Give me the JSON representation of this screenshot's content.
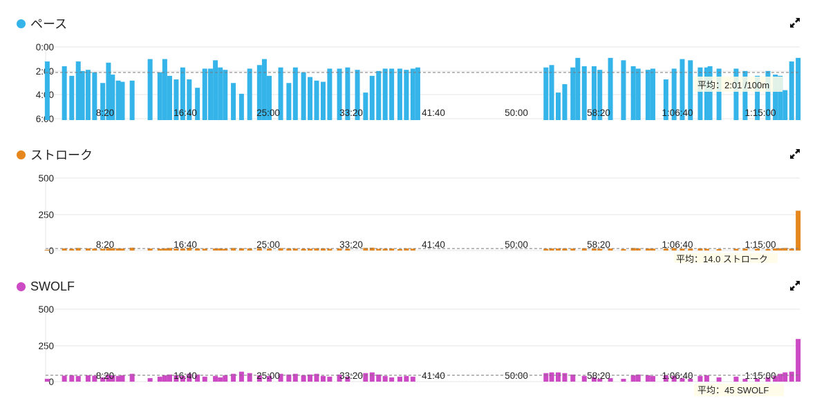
{
  "chart_data": [
    {
      "type": "bar",
      "title": "ペース",
      "color": "#35b4ea",
      "y_tick_labels": [
        "0:00",
        "2:00",
        "4:00",
        "6:00"
      ],
      "ylim": [
        0,
        6
      ],
      "reversed_y": true,
      "x_tick_labels": [
        "8:20",
        "16:40",
        "25:00",
        "33:20",
        "41:40",
        "50:00",
        "58:20",
        "1:06:40",
        "1:15:00"
      ],
      "xlim": [
        0,
        4620
      ],
      "average": {
        "value": 2.02,
        "label": "平均：2:01 /100m"
      },
      "bars": [
        [
          10,
          1.1
        ],
        [
          115,
          1.5
        ],
        [
          160,
          2.3
        ],
        [
          200,
          1.1
        ],
        [
          225,
          1.9
        ],
        [
          260,
          1.8
        ],
        [
          300,
          2.0
        ],
        [
          350,
          2.9
        ],
        [
          385,
          1.2
        ],
        [
          410,
          2.2
        ],
        [
          445,
          2.7
        ],
        [
          470,
          2.8
        ],
        [
          530,
          2.7
        ],
        [
          640,
          0.9
        ],
        [
          700,
          2.0
        ],
        [
          730,
          0.9
        ],
        [
          760,
          2.3
        ],
        [
          800,
          2.6
        ],
        [
          840,
          1.6
        ],
        [
          880,
          2.6
        ],
        [
          930,
          3.3
        ],
        [
          975,
          1.7
        ],
        [
          1010,
          1.7
        ],
        [
          1040,
          1.0
        ],
        [
          1070,
          1.6
        ],
        [
          1100,
          1.8
        ],
        [
          1150,
          2.9
        ],
        [
          1200,
          3.8
        ],
        [
          1250,
          1.7
        ],
        [
          1310,
          1.4
        ],
        [
          1340,
          0.9
        ],
        [
          1370,
          2.3
        ],
        [
          1440,
          1.6
        ],
        [
          1490,
          2.9
        ],
        [
          1530,
          1.6
        ],
        [
          1580,
          2.0
        ],
        [
          1620,
          2.4
        ],
        [
          1660,
          2.7
        ],
        [
          1700,
          2.8
        ],
        [
          1740,
          1.7
        ],
        [
          1800,
          1.7
        ],
        [
          1850,
          1.6
        ],
        [
          1910,
          1.8
        ],
        [
          1960,
          3.7
        ],
        [
          2000,
          2.3
        ],
        [
          2040,
          1.9
        ],
        [
          2080,
          1.7
        ],
        [
          2120,
          1.7
        ],
        [
          2170,
          1.7
        ],
        [
          2210,
          1.8
        ],
        [
          2250,
          1.7
        ],
        [
          2280,
          1.6
        ],
        [
          3065,
          1.6
        ],
        [
          3100,
          1.4
        ],
        [
          3140,
          3.7
        ],
        [
          3180,
          3.0
        ],
        [
          3230,
          1.6
        ],
        [
          3260,
          0.8
        ],
        [
          3300,
          1.5
        ],
        [
          3360,
          1.5
        ],
        [
          3395,
          1.8
        ],
        [
          3460,
          0.8
        ],
        [
          3540,
          1.0
        ],
        [
          3600,
          1.5
        ],
        [
          3630,
          1.7
        ],
        [
          3690,
          1.8
        ],
        [
          3720,
          1.7
        ],
        [
          3800,
          2.6
        ],
        [
          3850,
          1.7
        ],
        [
          3900,
          0.9
        ],
        [
          3950,
          1.0
        ],
        [
          4010,
          1.6
        ],
        [
          4050,
          1.6
        ],
        [
          4070,
          1.5
        ],
        [
          4125,
          1.7
        ],
        [
          4230,
          1.7
        ],
        [
          4285,
          1.9
        ],
        [
          4360,
          2.3
        ],
        [
          4425,
          1.9
        ],
        [
          4470,
          2.2
        ],
        [
          4500,
          2.3
        ],
        [
          4530,
          3.5
        ],
        [
          4570,
          1.1
        ],
        [
          4610,
          0.8
        ]
      ]
    },
    {
      "type": "bar",
      "title": "ストローク",
      "color": "#e5871d",
      "y_tick_labels": [
        "500",
        "250",
        "0"
      ],
      "ylim": [
        0,
        500
      ],
      "x_tick_labels": [
        "8:20",
        "16:40",
        "25:00",
        "33:20",
        "41:40",
        "50:00",
        "58:20",
        "1:06:40",
        "1:15:00"
      ],
      "xlim": [
        0,
        4620
      ],
      "average": {
        "value": 14,
        "label": "平均：14.0 ストローク"
      },
      "bars": [
        [
          10,
          5
        ],
        [
          115,
          15
        ],
        [
          160,
          12
        ],
        [
          200,
          18
        ],
        [
          260,
          15
        ],
        [
          300,
          14
        ],
        [
          350,
          12
        ],
        [
          385,
          18
        ],
        [
          410,
          17
        ],
        [
          445,
          15
        ],
        [
          470,
          14
        ],
        [
          530,
          20
        ],
        [
          640,
          14
        ],
        [
          700,
          12
        ],
        [
          730,
          15
        ],
        [
          760,
          18
        ],
        [
          800,
          14
        ],
        [
          840,
          15
        ],
        [
          880,
          20
        ],
        [
          930,
          15
        ],
        [
          975,
          13
        ],
        [
          1040,
          14
        ],
        [
          1070,
          15
        ],
        [
          1100,
          12
        ],
        [
          1150,
          18
        ],
        [
          1200,
          16
        ],
        [
          1250,
          15
        ],
        [
          1310,
          18
        ],
        [
          1370,
          14
        ],
        [
          1440,
          17
        ],
        [
          1490,
          15
        ],
        [
          1530,
          14
        ],
        [
          1580,
          12
        ],
        [
          1620,
          13
        ],
        [
          1660,
          16
        ],
        [
          1700,
          15
        ],
        [
          1740,
          12
        ],
        [
          1800,
          14
        ],
        [
          1850,
          13
        ],
        [
          1960,
          18
        ],
        [
          2000,
          20
        ],
        [
          2040,
          12
        ],
        [
          2080,
          13
        ],
        [
          2120,
          14
        ],
        [
          2170,
          10
        ],
        [
          2210,
          15
        ],
        [
          2250,
          13
        ],
        [
          3065,
          12
        ],
        [
          3100,
          15
        ],
        [
          3140,
          14
        ],
        [
          3180,
          15
        ],
        [
          3230,
          14
        ],
        [
          3300,
          16
        ],
        [
          3360,
          15
        ],
        [
          3395,
          12
        ],
        [
          3460,
          14
        ],
        [
          3540,
          10
        ],
        [
          3600,
          18
        ],
        [
          3630,
          15
        ],
        [
          3690,
          14
        ],
        [
          3720,
          13
        ],
        [
          3800,
          14
        ],
        [
          3850,
          18
        ],
        [
          3900,
          13
        ],
        [
          3950,
          14
        ],
        [
          4010,
          15
        ],
        [
          4050,
          12
        ],
        [
          4125,
          10
        ],
        [
          4230,
          12
        ],
        [
          4285,
          14
        ],
        [
          4360,
          13
        ],
        [
          4425,
          10
        ],
        [
          4470,
          15
        ],
        [
          4500,
          16
        ],
        [
          4530,
          18
        ],
        [
          4570,
          14
        ],
        [
          4610,
          280
        ]
      ]
    },
    {
      "type": "bar",
      "title": "SWOLF",
      "color": "#cc4ac3",
      "y_tick_labels": [
        "500",
        "250",
        "0"
      ],
      "ylim": [
        0,
        500
      ],
      "x_tick_labels": [
        "8:20",
        "16:40",
        "25:00",
        "33:20",
        "41:40",
        "50:00",
        "58:20",
        "1:06:40",
        "1:15:00"
      ],
      "xlim": [
        0,
        4620
      ],
      "average": {
        "value": 45,
        "label": "平均：45 SWOLF"
      },
      "bars": [
        [
          10,
          20
        ],
        [
          115,
          42
        ],
        [
          160,
          45
        ],
        [
          200,
          40
        ],
        [
          260,
          45
        ],
        [
          300,
          42
        ],
        [
          350,
          30
        ],
        [
          385,
          50
        ],
        [
          410,
          45
        ],
        [
          445,
          40
        ],
        [
          470,
          45
        ],
        [
          530,
          55
        ],
        [
          640,
          25
        ],
        [
          700,
          35
        ],
        [
          730,
          45
        ],
        [
          760,
          50
        ],
        [
          800,
          45
        ],
        [
          840,
          40
        ],
        [
          880,
          55
        ],
        [
          930,
          50
        ],
        [
          975,
          35
        ],
        [
          1040,
          40
        ],
        [
          1070,
          30
        ],
        [
          1100,
          45
        ],
        [
          1150,
          55
        ],
        [
          1200,
          70
        ],
        [
          1250,
          60
        ],
        [
          1310,
          45
        ],
        [
          1370,
          40
        ],
        [
          1440,
          55
        ],
        [
          1490,
          50
        ],
        [
          1530,
          55
        ],
        [
          1580,
          45
        ],
        [
          1620,
          50
        ],
        [
          1660,
          55
        ],
        [
          1700,
          40
        ],
        [
          1740,
          35
        ],
        [
          1800,
          50
        ],
        [
          1850,
          35
        ],
        [
          1960,
          60
        ],
        [
          2000,
          65
        ],
        [
          2040,
          50
        ],
        [
          2080,
          40
        ],
        [
          2120,
          30
        ],
        [
          2170,
          35
        ],
        [
          2210,
          40
        ],
        [
          2250,
          35
        ],
        [
          3065,
          60
        ],
        [
          3100,
          65
        ],
        [
          3140,
          65
        ],
        [
          3180,
          60
        ],
        [
          3230,
          50
        ],
        [
          3300,
          40
        ],
        [
          3360,
          30
        ],
        [
          3395,
          20
        ],
        [
          3460,
          25
        ],
        [
          3540,
          20
        ],
        [
          3600,
          45
        ],
        [
          3630,
          50
        ],
        [
          3690,
          45
        ],
        [
          3720,
          40
        ],
        [
          3800,
          45
        ],
        [
          3850,
          40
        ],
        [
          3900,
          25
        ],
        [
          3950,
          20
        ],
        [
          4010,
          40
        ],
        [
          4050,
          45
        ],
        [
          4125,
          30
        ],
        [
          4230,
          35
        ],
        [
          4285,
          20
        ],
        [
          4360,
          20
        ],
        [
          4425,
          30
        ],
        [
          4470,
          40
        ],
        [
          4500,
          55
        ],
        [
          4530,
          65
        ],
        [
          4570,
          70
        ],
        [
          4610,
          300
        ]
      ]
    }
  ]
}
